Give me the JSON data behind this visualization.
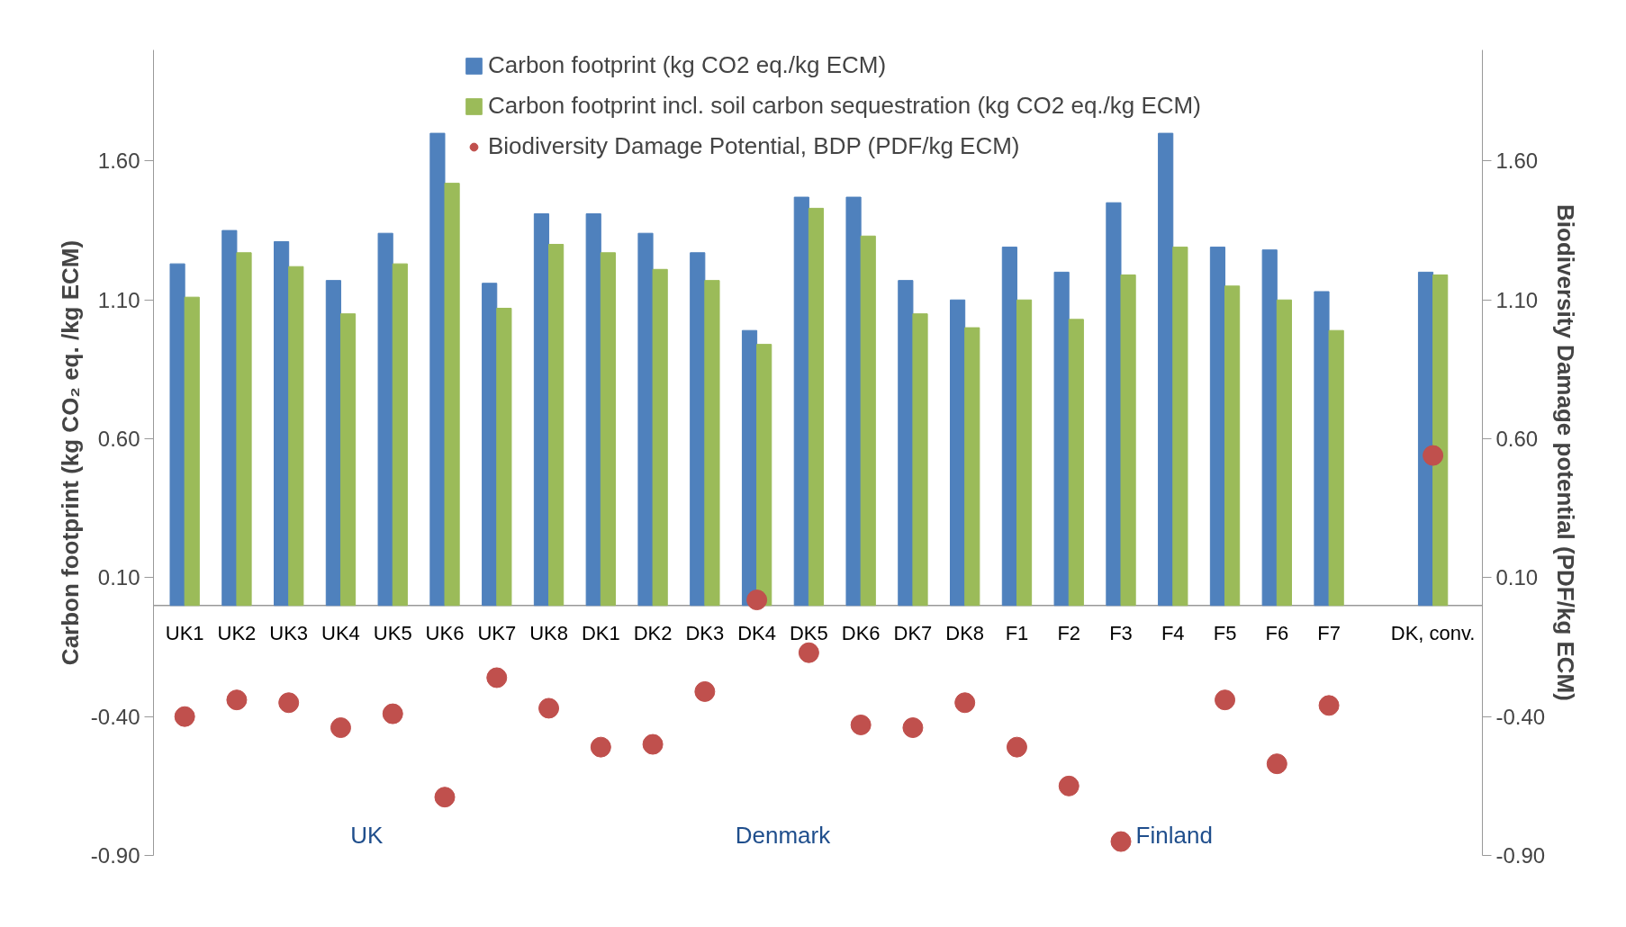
{
  "chart_data": {
    "type": "bar",
    "categories": [
      "UK1",
      "UK2",
      "UK3",
      "UK4",
      "UK5",
      "UK6",
      "UK7",
      "UK8",
      "DK1",
      "DK2",
      "DK3",
      "DK4",
      "DK5",
      "DK6",
      "DK7",
      "DK8",
      "F1",
      "F2",
      "F3",
      "F4",
      "F5",
      "F6",
      "F7",
      null,
      "DK, conv."
    ],
    "series": [
      {
        "name": "Carbon footprint (kg CO2 eq./kg ECM)",
        "color": "#4f81bd",
        "values": [
          1.23,
          1.35,
          1.31,
          1.17,
          1.34,
          1.7,
          1.16,
          1.41,
          1.41,
          1.34,
          1.27,
          0.99,
          1.47,
          1.47,
          1.17,
          1.1,
          1.29,
          1.2,
          1.45,
          1.7,
          1.29,
          1.28,
          1.13,
          null,
          1.2
        ]
      },
      {
        "name": "Carbon footprint incl. soil carbon sequestration (kg CO2 eq./kg ECM)",
        "color": "#9bbb59",
        "values": [
          1.11,
          1.27,
          1.22,
          1.05,
          1.23,
          1.52,
          1.07,
          1.3,
          1.27,
          1.21,
          1.17,
          0.94,
          1.43,
          1.33,
          1.05,
          1.0,
          1.1,
          1.03,
          1.19,
          1.29,
          1.15,
          1.1,
          0.99,
          null,
          1.19
        ]
      },
      {
        "name": "Biodiversity Damage Potential, BDP (PDF/kg ECM)",
        "color": "#c0504d",
        "type": "scatter",
        "marker": "circle",
        "values": [
          -0.4,
          -0.34,
          -0.35,
          -0.44,
          -0.39,
          -0.69,
          -0.26,
          -0.37,
          -0.51,
          -0.5,
          -0.31,
          0.02,
          -0.17,
          -0.43,
          -0.44,
          -0.35,
          -0.51,
          -0.65,
          -0.85,
          null,
          -0.34,
          -0.57,
          -0.36,
          null,
          0.54
        ]
      }
    ],
    "ylabel": "Carbon footprint (kg CO₂ eq. /kg ECM)",
    "y2label": "Biodiversity Damage potential (PDF/kg ECM)",
    "ylim": [
      -0.9,
      2.0
    ],
    "yticks": [
      {
        "value": -0.9,
        "label": "-0.90"
      },
      {
        "value": -0.4,
        "label": "-0.40"
      },
      {
        "value": 0.1,
        "label": "0.10"
      },
      {
        "value": 0.6,
        "label": "0.60"
      },
      {
        "value": 1.1,
        "label": "1.10"
      },
      {
        "value": 1.6,
        "label": "1.60"
      }
    ],
    "y2lim": [
      -0.9,
      2.0
    ],
    "y2ticks": [
      {
        "value": -0.9,
        "label": "-0.90"
      },
      {
        "value": -0.4,
        "label": "-0.40"
      },
      {
        "value": 0.1,
        "label": "0.10"
      },
      {
        "value": 0.6,
        "label": "0.60"
      },
      {
        "value": 1.1,
        "label": "1.10"
      },
      {
        "value": 1.6,
        "label": "1.60"
      }
    ],
    "annotations": [
      "UK",
      "Denmark",
      "Finland"
    ],
    "legend": "top",
    "grid": false
  }
}
